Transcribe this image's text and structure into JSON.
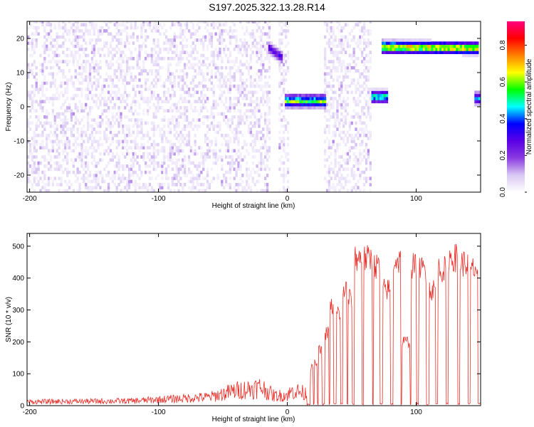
{
  "title": "S197.2025.322.13.28.R14",
  "chart_data": [
    {
      "type": "heatmap",
      "xlabel": "Height of straight line (km)",
      "ylabel": "Frequency (Hz)",
      "xlim": [
        -202,
        150
      ],
      "ylim": [
        -25,
        25
      ],
      "xticks": [
        -200,
        -100,
        0,
        100
      ],
      "xtick_labels": [
        "-200",
        "-100",
        "0",
        "100"
      ],
      "yticks": [
        -20,
        -10,
        0,
        10,
        20
      ],
      "ytick_labels": [
        "-20",
        "-10",
        "0",
        "10",
        "20"
      ],
      "colorbar": {
        "label": "Normalized spectral amplitude",
        "range": [
          0,
          0.93
        ],
        "ticks": [
          0,
          0.2,
          0.4,
          0.6,
          0.8
        ],
        "tick_labels": [
          "0.0",
          "0.2",
          "0.4",
          "0.6",
          "0.8"
        ],
        "colors": [
          "#ffffff",
          "#d9c8f3",
          "#8a3be0",
          "#5a00e6",
          "#0000ff",
          "#00ffff",
          "#00ff00",
          "#ffff00",
          "#ff8000",
          "#ff0000",
          "#ff0080"
        ]
      },
      "noise_regions": [
        [
          -202,
          -14
        ],
        [
          -8,
          0
        ],
        [
          27,
          65
        ]
      ],
      "features": [
        {
          "x0": -14,
          "x1": -5,
          "y0": 17,
          "y1": 14.5,
          "amp": 0.35
        },
        {
          "x0": -2,
          "x1": 28,
          "y0": 1.7,
          "y1": 1.7,
          "amp": 0.7
        },
        {
          "x0": 65,
          "x1": 76,
          "y0": 3,
          "y1": 3,
          "amp": 0.65
        },
        {
          "x0": 74,
          "x1": 146,
          "y0": 17.5,
          "y1": 17.2,
          "amp": 0.85
        },
        {
          "x0": 145,
          "x1": 150,
          "y0": 2.5,
          "y1": 2.5,
          "amp": 0.5
        }
      ]
    },
    {
      "type": "line",
      "xlabel": "Height of straight line (km)",
      "ylabel": "SNR (10 * v/v)",
      "xlim": [
        -202,
        150
      ],
      "ylim": [
        0,
        540
      ],
      "xticks": [
        -200,
        -100,
        0,
        100
      ],
      "xtick_labels": [
        "-200",
        "-100",
        "0",
        "100"
      ],
      "yticks": [
        0,
        100,
        200,
        300,
        400,
        500
      ],
      "ytick_labels": [
        "0",
        "100",
        "200",
        "300",
        "400",
        "500"
      ],
      "series": [
        {
          "name": "SNR",
          "color": "#e8302a",
          "envelope_x": [
            -202,
            -120,
            -60,
            -40,
            -20,
            -10,
            0,
            5,
            15
          ],
          "envelope_y": [
            18,
            22,
            40,
            70,
            85,
            45,
            50,
            70,
            55
          ],
          "pulses": [
            [
              18,
              20,
              130
            ],
            [
              21,
              23,
              145
            ],
            [
              24,
              27,
              190
            ],
            [
              29,
              32,
              250
            ],
            [
              33,
              36,
              340
            ],
            [
              38,
              41,
              320
            ],
            [
              43,
              46,
              400
            ],
            [
              47,
              50,
              370
            ],
            [
              52,
              58,
              510
            ],
            [
              59,
              66,
              505
            ],
            [
              67,
              72,
              480
            ],
            [
              74,
              80,
              400
            ],
            [
              82,
              88,
              500
            ],
            [
              89,
              95,
              220
            ],
            [
              96,
              100,
              480
            ],
            [
              102,
              108,
              470
            ],
            [
              110,
              115,
              400
            ],
            [
              117,
              123,
              470
            ],
            [
              125,
              132,
              510
            ],
            [
              134,
              140,
              490
            ],
            [
              142,
              148,
              470
            ]
          ]
        }
      ]
    }
  ]
}
